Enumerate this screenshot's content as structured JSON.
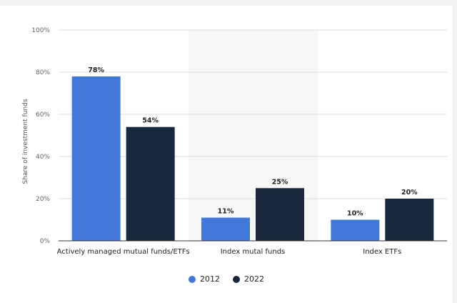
{
  "colors": {
    "s2012": "#4178d9",
    "s2022": "#17283f",
    "grid": "#dcdcdc",
    "band": "#f7f7f7"
  },
  "chart_data": {
    "type": "bar",
    "title": "",
    "xlabel": "",
    "ylabel": "Share of investment funds",
    "ylim": [
      0,
      100
    ],
    "yticks": [
      "0%",
      "20%",
      "40%",
      "60%",
      "80%",
      "100%"
    ],
    "categories": [
      "Actively managed mutual funds/ETFs",
      "Index mutal funds",
      "Index ETFs"
    ],
    "series": [
      {
        "name": "2012",
        "values": [
          78,
          11,
          10
        ],
        "labels": [
          "78%",
          "11%",
          "10%"
        ]
      },
      {
        "name": "2022",
        "values": [
          54,
          25,
          20
        ],
        "labels": [
          "54%",
          "25%",
          "20%"
        ]
      }
    ],
    "legend": "bottom-center"
  }
}
